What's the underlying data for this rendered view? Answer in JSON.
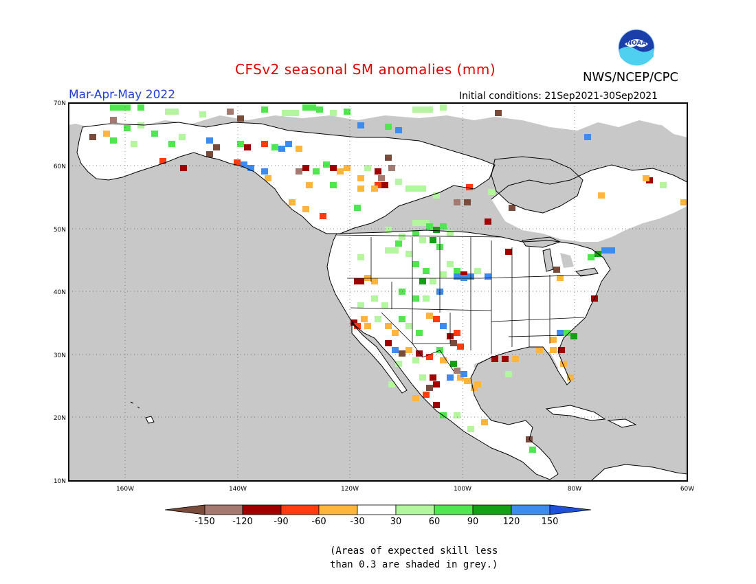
{
  "header": {
    "title": "CFSv2 seasonal SM anomalies (mm)",
    "organization": "NWS/NCEP/CPC",
    "period": "Mar-Apr-May 2022",
    "initial_conditions": "Initial conditions: 21Sep2021-30Sep2021",
    "logo_text": "NOAA"
  },
  "map": {
    "lat_labels": [
      "70N",
      "60N",
      "50N",
      "40N",
      "30N",
      "20N",
      "10N"
    ],
    "lon_labels": [
      "160W",
      "140W",
      "120W",
      "100W",
      "80W",
      "60W"
    ],
    "land_color": "#ffffff",
    "ocean_color": "#c8c8c8"
  },
  "legend": {
    "tick_labels": [
      "-150",
      "-120",
      "-90",
      "-60",
      "-30",
      "30",
      "60",
      "90",
      "120",
      "150"
    ],
    "colors": [
      "#7a4a3a",
      "#a47a70",
      "#a00000",
      "#ff3c10",
      "#ffb43c",
      "#ffffff",
      "#b4f5a0",
      "#50e650",
      "#14a014",
      "#3c8cf0",
      "#1e50dc"
    ]
  },
  "note": {
    "line1": "(Areas of expected skill less",
    "line2": "than 0.3 are shaded in grey.)"
  }
}
